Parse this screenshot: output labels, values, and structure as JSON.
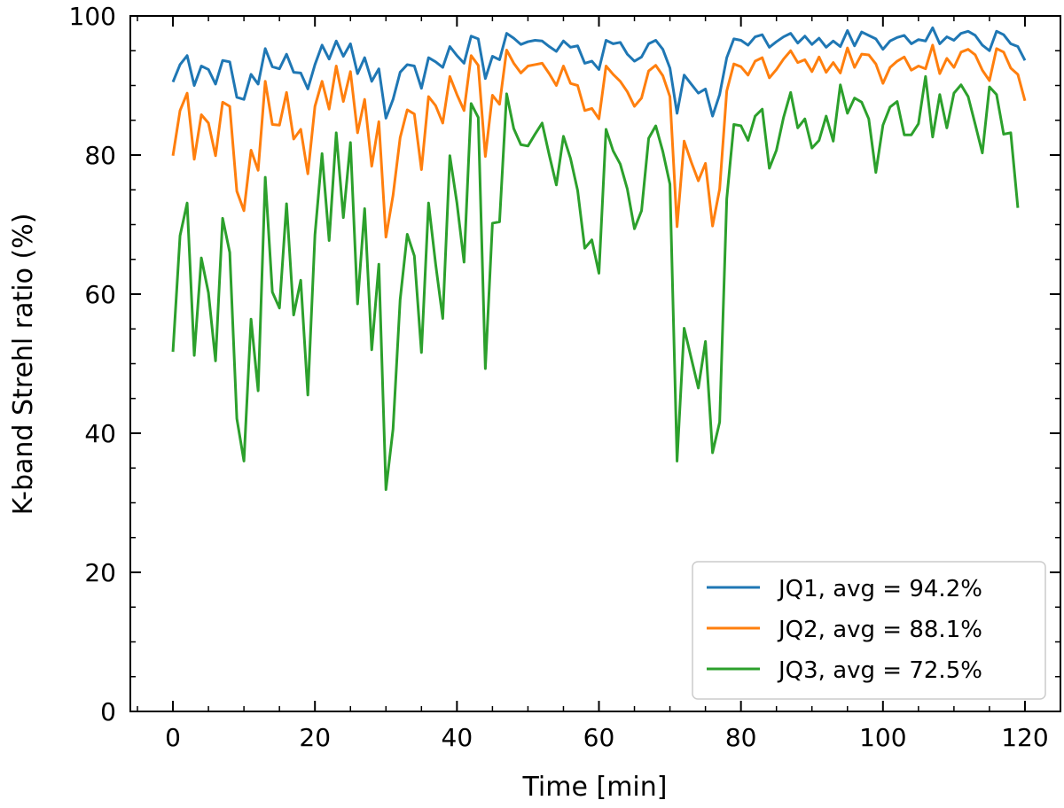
{
  "chart_data": {
    "type": "line",
    "title": "",
    "xlabel": "Time [min]",
    "ylabel": "K-band Strehl ratio (%)",
    "xlim": [
      -6,
      125
    ],
    "ylim": [
      0,
      100
    ],
    "xticks": [
      0,
      20,
      40,
      60,
      80,
      100,
      120
    ],
    "yticks": [
      0,
      20,
      40,
      60,
      80,
      100
    ],
    "legend_position": "bottom-right",
    "series": [
      {
        "name": "JQ1, avg = 94.2%",
        "color": "#1f77b4",
        "values": [
          90.5,
          93.0,
          94.3,
          90.0,
          92.8,
          92.3,
          90.2,
          93.6,
          93.4,
          88.3,
          88.0,
          91.6,
          90.2,
          95.3,
          92.7,
          92.4,
          94.5,
          91.9,
          91.8,
          89.5,
          93.0,
          95.8,
          93.8,
          96.4,
          94.2,
          96.0,
          91.7,
          94.0,
          90.6,
          92.4,
          85.3,
          88.0,
          91.9,
          93.0,
          92.8,
          89.6,
          94.0,
          93.4,
          92.6,
          95.6,
          94.3,
          93.2,
          97.1,
          96.7,
          91.0,
          94.2,
          93.7,
          97.5,
          96.8,
          95.9,
          96.3,
          96.5,
          96.4,
          95.6,
          94.9,
          96.4,
          95.5,
          95.7,
          93.2,
          93.5,
          92.3,
          96.5,
          96.0,
          96.2,
          94.5,
          93.5,
          94.1,
          96.0,
          96.5,
          95.2,
          92.5,
          86.0,
          91.5,
          90.2,
          88.9,
          89.5,
          85.6,
          88.7,
          94.0,
          96.7,
          96.5,
          95.8,
          97.0,
          97.3,
          95.5,
          96.3,
          97.0,
          97.5,
          96.1,
          97.1,
          95.9,
          96.8,
          95.5,
          96.4,
          95.6,
          97.9,
          95.7,
          97.7,
          97.2,
          96.7,
          95.2,
          96.4,
          96.9,
          97.2,
          96.0,
          96.6,
          96.4,
          98.3,
          96.0,
          97.0,
          96.5,
          97.5,
          97.8,
          97.2,
          95.8,
          95.0,
          97.8,
          97.3,
          96.0,
          95.6,
          93.6
        ]
      },
      {
        "name": "JQ2, avg = 88.1%",
        "color": "#ff7f0e",
        "values": [
          79.9,
          86.4,
          88.9,
          79.4,
          85.8,
          84.6,
          79.9,
          87.6,
          87.0,
          74.8,
          72.0,
          80.7,
          77.8,
          90.6,
          84.4,
          84.3,
          89.0,
          82.3,
          83.7,
          77.3,
          87.0,
          90.6,
          86.6,
          92.8,
          87.7,
          92.0,
          83.2,
          88.0,
          78.4,
          84.8,
          68.2,
          74.2,
          82.5,
          86.5,
          85.9,
          77.9,
          88.4,
          87.1,
          84.6,
          91.3,
          88.7,
          86.4,
          94.3,
          92.9,
          79.8,
          88.6,
          87.3,
          95.1,
          93.2,
          91.8,
          92.8,
          93.0,
          93.2,
          91.7,
          90.0,
          92.8,
          90.3,
          90.0,
          86.4,
          86.7,
          85.2,
          92.8,
          91.6,
          90.6,
          89.1,
          87.0,
          88.2,
          92.1,
          92.9,
          91.4,
          88.4,
          69.7,
          82.0,
          79.0,
          76.3,
          78.8,
          69.8,
          75.1,
          89.2,
          93.1,
          92.7,
          91.5,
          93.5,
          94.0,
          91.1,
          92.3,
          93.8,
          95.0,
          93.3,
          93.7,
          92.0,
          94.1,
          91.9,
          93.3,
          91.8,
          95.4,
          92.6,
          94.5,
          94.4,
          93.1,
          90.3,
          92.6,
          93.5,
          94.1,
          92.2,
          92.8,
          92.4,
          95.8,
          91.7,
          93.9,
          92.6,
          94.8,
          95.2,
          94.4,
          92.2,
          90.7,
          95.3,
          94.8,
          92.5,
          91.6,
          87.8
        ]
      },
      {
        "name": "JQ3, avg = 72.5%",
        "color": "#2ca02c",
        "values": [
          51.7,
          68.4,
          73.1,
          51.2,
          65.2,
          60.2,
          50.4,
          70.9,
          66.0,
          42.1,
          36.0,
          56.4,
          46.1,
          76.8,
          60.3,
          58.0,
          73.0,
          57.0,
          62.0,
          45.5,
          68.5,
          80.2,
          67.7,
          83.2,
          71.0,
          81.8,
          58.6,
          72.3,
          52.0,
          64.3,
          31.9,
          40.6,
          59.2,
          68.6,
          65.5,
          51.6,
          73.1,
          64.3,
          56.5,
          79.9,
          73.1,
          64.6,
          87.4,
          85.4,
          49.3,
          70.2,
          70.4,
          88.8,
          83.8,
          81.5,
          81.3,
          83.0,
          84.6,
          80.0,
          75.7,
          82.7,
          79.5,
          74.9,
          66.6,
          67.8,
          63.0,
          83.7,
          80.6,
          78.7,
          75.1,
          69.4,
          72.0,
          82.4,
          84.2,
          80.5,
          75.8,
          36.0,
          55.1,
          50.8,
          46.5,
          53.2,
          37.2,
          41.6,
          73.7,
          84.4,
          84.2,
          82.1,
          85.6,
          86.6,
          78.1,
          80.7,
          85.4,
          89.0,
          83.9,
          85.2,
          81.0,
          82.1,
          85.6,
          82.0,
          90.1,
          86.0,
          88.2,
          87.6,
          85.2,
          77.5,
          84.3,
          86.9,
          87.7,
          82.9,
          82.9,
          84.5,
          91.3,
          82.6,
          88.7,
          83.9,
          88.9,
          90.1,
          88.4,
          84.4,
          80.3,
          89.8,
          88.7,
          83.0,
          83.2,
          72.4
        ]
      }
    ]
  }
}
